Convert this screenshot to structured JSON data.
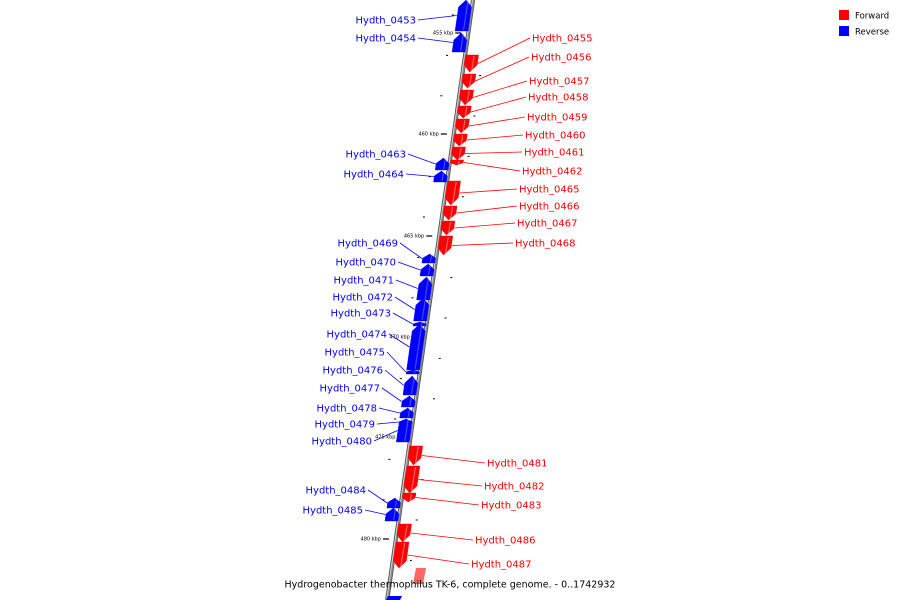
{
  "caption": "Hydrogenobacter thermophilus TK-6, complete genome. - 0..1742932",
  "legend": [
    {
      "label": "Forward",
      "color": "#ff0000"
    },
    {
      "label": "Reverse",
      "color": "#0000ff"
    }
  ],
  "colors": {
    "forward": "#ff0000",
    "reverse": "#0000ff",
    "backbone": "#8a8a8a"
  },
  "scale_labels": [
    "455 kbp",
    "460 kbp",
    "465 kbp",
    "470 kbp",
    "475 kbp",
    "480 kbp"
  ],
  "genes": [
    {
      "name": "Hydth_0453",
      "strand": "reverse"
    },
    {
      "name": "Hydth_0454",
      "strand": "reverse"
    },
    {
      "name": "Hydth_0455",
      "strand": "forward"
    },
    {
      "name": "Hydth_0456",
      "strand": "forward"
    },
    {
      "name": "Hydth_0457",
      "strand": "forward"
    },
    {
      "name": "Hydth_0458",
      "strand": "forward"
    },
    {
      "name": "Hydth_0459",
      "strand": "forward"
    },
    {
      "name": "Hydth_0460",
      "strand": "forward"
    },
    {
      "name": "Hydth_0461",
      "strand": "forward"
    },
    {
      "name": "Hydth_0462",
      "strand": "forward"
    },
    {
      "name": "Hydth_0463",
      "strand": "reverse"
    },
    {
      "name": "Hydth_0464",
      "strand": "reverse"
    },
    {
      "name": "Hydth_0465",
      "strand": "forward"
    },
    {
      "name": "Hydth_0466",
      "strand": "forward"
    },
    {
      "name": "Hydth_0467",
      "strand": "forward"
    },
    {
      "name": "Hydth_0468",
      "strand": "forward"
    },
    {
      "name": "Hydth_0469",
      "strand": "reverse"
    },
    {
      "name": "Hydth_0470",
      "strand": "reverse"
    },
    {
      "name": "Hydth_0471",
      "strand": "reverse"
    },
    {
      "name": "Hydth_0472",
      "strand": "reverse"
    },
    {
      "name": "Hydth_0473",
      "strand": "reverse"
    },
    {
      "name": "Hydth_0474",
      "strand": "reverse"
    },
    {
      "name": "Hydth_0475",
      "strand": "reverse"
    },
    {
      "name": "Hydth_0476",
      "strand": "reverse"
    },
    {
      "name": "Hydth_0477",
      "strand": "reverse"
    },
    {
      "name": "Hydth_0478",
      "strand": "reverse"
    },
    {
      "name": "Hydth_0479",
      "strand": "reverse"
    },
    {
      "name": "Hydth_0480",
      "strand": "reverse"
    },
    {
      "name": "Hydth_0481",
      "strand": "forward"
    },
    {
      "name": "Hydth_0482",
      "strand": "forward"
    },
    {
      "name": "Hydth_0483",
      "strand": "forward"
    },
    {
      "name": "Hydth_0484",
      "strand": "reverse"
    },
    {
      "name": "Hydth_0485",
      "strand": "reverse"
    },
    {
      "name": "Hydth_0486",
      "strand": "forward"
    },
    {
      "name": "Hydth_0487",
      "strand": "forward"
    }
  ]
}
